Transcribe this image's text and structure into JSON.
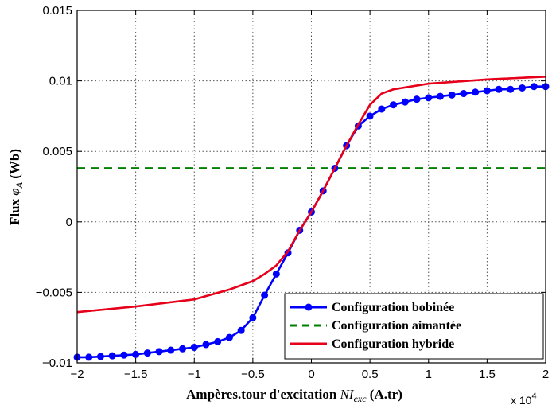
{
  "chart_data": {
    "type": "line",
    "xlabel_text": "Ampères.tour d'excitation ",
    "xlabel_math": "NI",
    "xlabel_sub": "exc",
    "xlabel_unit": " (A.tr)",
    "ylabel_text": "Flux ",
    "ylabel_math": "φ",
    "ylabel_sub": "A",
    "ylabel_unit": " (Wb)",
    "x_exponent_base": "x 10",
    "x_exponent_power": "4",
    "xlim": [
      -2,
      2
    ],
    "ylim": [
      -0.01,
      0.015
    ],
    "x_ticks": [
      -2,
      -1.5,
      -1,
      -0.5,
      0,
      0.5,
      1,
      1.5,
      2
    ],
    "x_tick_labels": [
      "−2",
      "−1.5",
      "−1",
      "−0.5",
      "0",
      "0.5",
      "1",
      "1.5",
      "2"
    ],
    "y_ticks": [
      -0.01,
      -0.005,
      0,
      0.005,
      0.01,
      0.015
    ],
    "y_tick_labels": [
      "−0.01",
      "−0.005",
      "0",
      "0.005",
      "0.01",
      "0.015"
    ],
    "grid": true,
    "legend_position": "bottom-right",
    "series": [
      {
        "name": "Configuration bobinée",
        "color": "#0000ff",
        "style": "solid",
        "marker": "circle",
        "x": [
          -2,
          -1.9,
          -1.8,
          -1.7,
          -1.6,
          -1.5,
          -1.4,
          -1.3,
          -1.2,
          -1.1,
          -1.0,
          -0.9,
          -0.8,
          -0.7,
          -0.6,
          -0.5,
          -0.4,
          -0.3,
          -0.2,
          -0.1,
          0,
          0.1,
          0.2,
          0.3,
          0.4,
          0.5,
          0.6,
          0.7,
          0.8,
          0.9,
          1.0,
          1.1,
          1.2,
          1.3,
          1.4,
          1.5,
          1.6,
          1.7,
          1.8,
          1.9,
          2.0
        ],
        "y": [
          -0.0096,
          -0.0096,
          -0.00955,
          -0.0095,
          -0.00945,
          -0.0094,
          -0.0093,
          -0.0092,
          -0.0091,
          -0.009,
          -0.0089,
          -0.0087,
          -0.0085,
          -0.0082,
          -0.0077,
          -0.0068,
          -0.0052,
          -0.0037,
          -0.0022,
          -0.0006,
          0.0007,
          0.0022,
          0.0038,
          0.0054,
          0.0068,
          0.0075,
          0.008,
          0.0083,
          0.0085,
          0.0087,
          0.0088,
          0.0089,
          0.009,
          0.0091,
          0.0092,
          0.0093,
          0.0094,
          0.0094,
          0.0095,
          0.0096,
          0.0096
        ]
      },
      {
        "name": "Configuration aimantée",
        "color": "#008000",
        "style": "dashed",
        "marker": "none",
        "x": [
          -2,
          2
        ],
        "y": [
          0.0038,
          0.0038
        ]
      },
      {
        "name": "Configuration hybride",
        "color": "#e6001a",
        "style": "solid",
        "marker": "none",
        "x": [
          -2,
          -1.5,
          -1.0,
          -0.7,
          -0.5,
          -0.4,
          -0.3,
          -0.2,
          -0.1,
          0,
          0.1,
          0.2,
          0.3,
          0.4,
          0.5,
          0.6,
          0.7,
          1.0,
          1.5,
          2.0
        ],
        "y": [
          -0.0064,
          -0.006,
          -0.0055,
          -0.0048,
          -0.0042,
          -0.0037,
          -0.0031,
          -0.0021,
          -0.0006,
          0.0007,
          0.0022,
          0.0038,
          0.0054,
          0.0069,
          0.0083,
          0.0091,
          0.0094,
          0.0098,
          0.0101,
          0.0103
        ]
      }
    ]
  }
}
